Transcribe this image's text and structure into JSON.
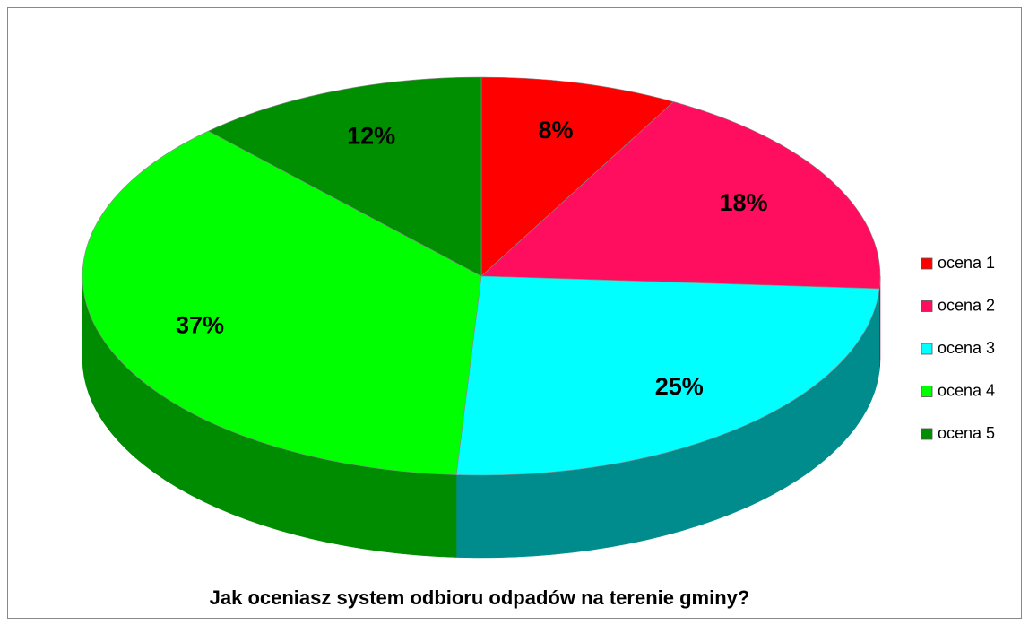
{
  "chart_data": {
    "type": "pie",
    "title": "Jak oceniasz system odbioru odpadów na terenie gminy?",
    "categories": [
      "ocena 1",
      "ocena 2",
      "ocena 3",
      "ocena 4",
      "ocena 5"
    ],
    "values": [
      8,
      18,
      25,
      37,
      12
    ],
    "value_labels": [
      "8%",
      "18%",
      "25%",
      "37%",
      "12%"
    ],
    "colors": [
      "#ff0000",
      "#ff0d5e",
      "#00ffff",
      "#00ff00",
      "#008f00"
    ],
    "legend": "right"
  }
}
